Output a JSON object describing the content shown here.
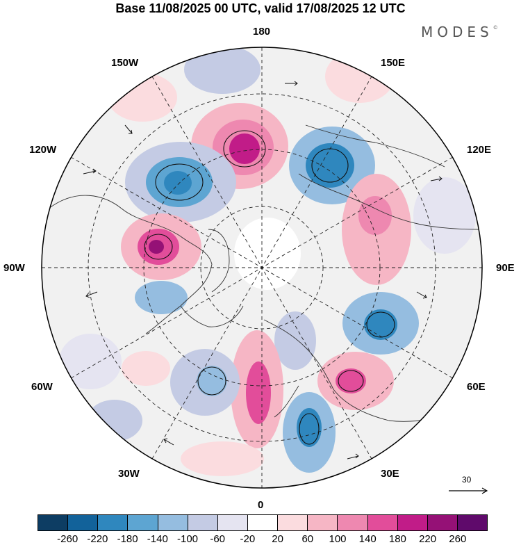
{
  "header": {
    "title": "Base 11/08/2025 00 UTC, valid 17/08/2025 12 UTC",
    "brand": "MODES",
    "brand_mark": "©"
  },
  "map": {
    "projection": "north-polar-stereographic",
    "meridian_labels": {
      "top": "180",
      "bottom": "0",
      "left": "90W",
      "right": "90E",
      "upper_left_1": "150W",
      "upper_left_2": "120W",
      "lower_left_1": "60W",
      "lower_left_2": "30W",
      "upper_right_1": "150E",
      "upper_right_2": "120E",
      "lower_right_1": "60E",
      "lower_right_2": "30E"
    },
    "wind_reference": {
      "label": "30"
    }
  },
  "colorbar": {
    "colors": [
      "#0d3d63",
      "#12629a",
      "#2f87be",
      "#5da5d2",
      "#95bde0",
      "#c4cbe4",
      "#e5e4f1",
      "#ffffff",
      "#fbdcdf",
      "#f6b6c5",
      "#ee88b0",
      "#e24d9a",
      "#c11c88",
      "#951176",
      "#5f0a6b"
    ],
    "ticks": [
      "-260",
      "-220",
      "-180",
      "-140",
      "-100",
      "-60",
      "-20",
      "20",
      "60",
      "100",
      "140",
      "180",
      "220",
      "260"
    ]
  }
}
